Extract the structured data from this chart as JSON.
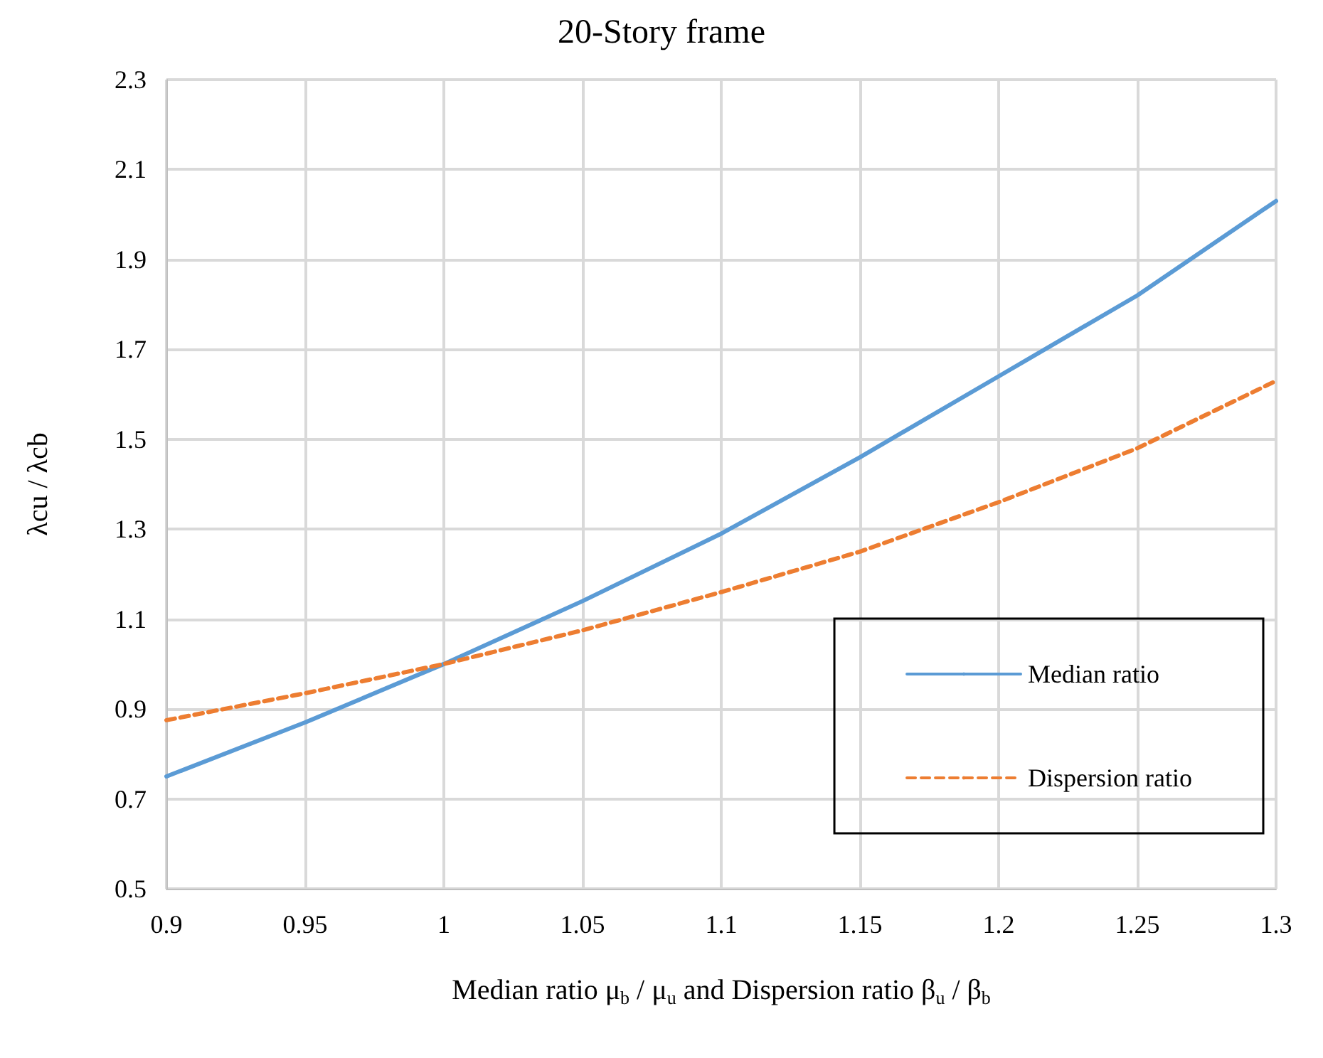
{
  "chart_data": {
    "type": "line",
    "title": "20-Story frame",
    "xlabel": "Median ratio μ$_{b}$ / μ$_{u}$ and Dispersion ratio β$_{u}$ / β$_{b}$",
    "ylabel": "λcu / λcb",
    "x": [
      0.9,
      0.95,
      1.0,
      1.05,
      1.1,
      1.15,
      1.2,
      1.25,
      1.3
    ],
    "series": [
      {
        "name": "Median ratio",
        "color": "#5b9bd5",
        "line_style": "solid",
        "values": [
          0.75,
          0.87,
          1.0,
          1.14,
          1.29,
          1.46,
          1.64,
          1.82,
          2.03
        ]
      },
      {
        "name": "Dispersion ratio",
        "color": "#ed7d31",
        "line_style": "dashed",
        "values": [
          0.875,
          0.935,
          1.0,
          1.075,
          1.16,
          1.25,
          1.36,
          1.48,
          1.63
        ]
      }
    ],
    "xlim": [
      0.9,
      1.3
    ],
    "xticks": [
      0.9,
      0.95,
      1,
      1.05,
      1.1,
      1.15,
      1.2,
      1.25,
      1.3
    ],
    "ylim": [
      0.5,
      2.3
    ],
    "yticks": [
      0.5,
      0.7,
      0.9,
      1.1,
      1.3,
      1.5,
      1.7,
      1.9,
      2.1,
      2.3
    ],
    "grid": true,
    "legend": "bottom right",
    "marker": "none"
  }
}
